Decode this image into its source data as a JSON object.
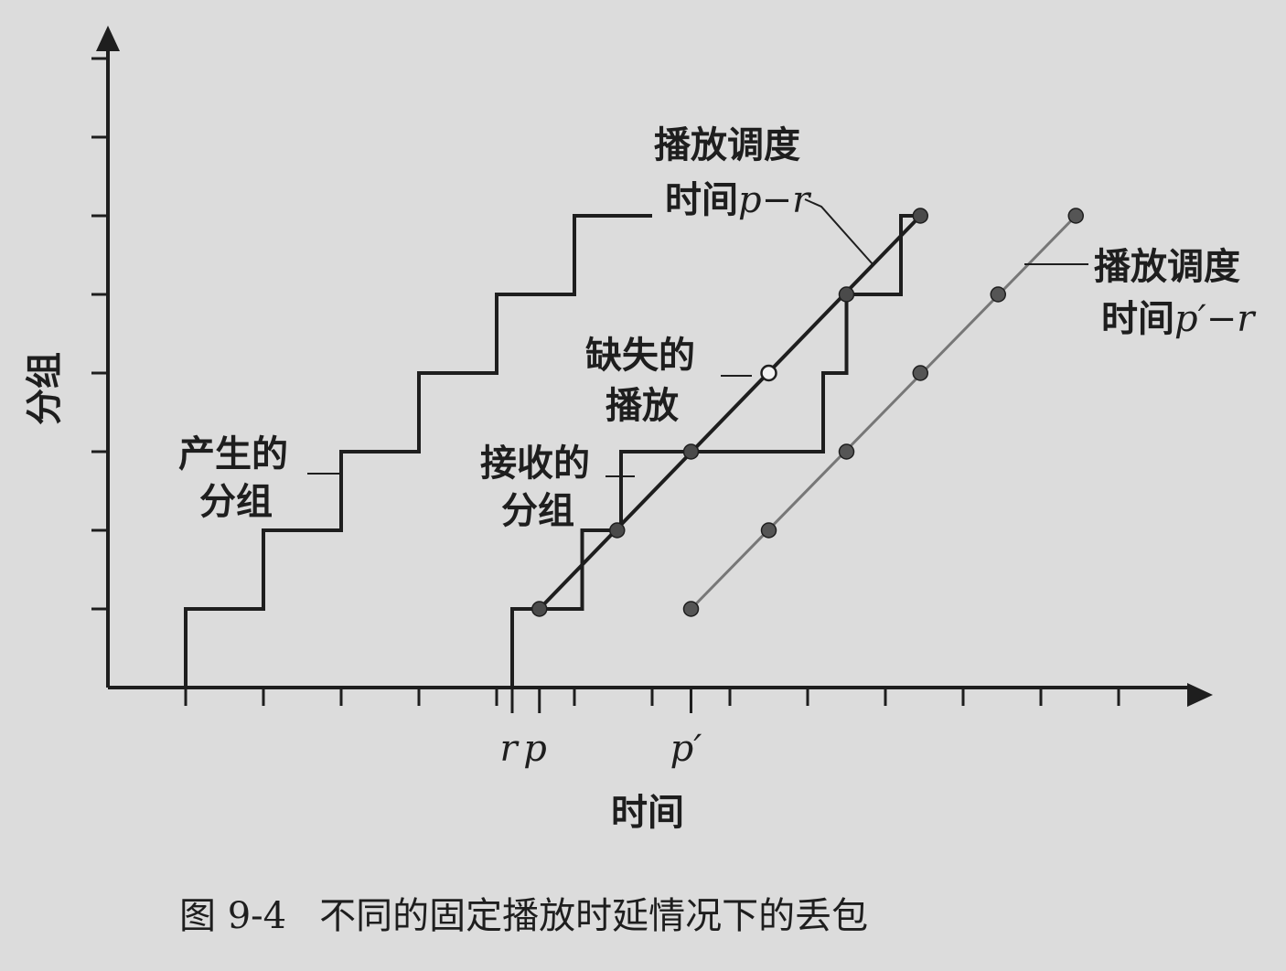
{
  "axes": {
    "y_label": "分组",
    "x_label": "时间",
    "x_tick_labels": {
      "r": "r",
      "p": "p",
      "p_prime": "p′"
    }
  },
  "labels": {
    "schedule1_line1": "播放调度",
    "schedule1_line2_cn": "时间",
    "schedule1_line2_math": "p−r",
    "schedule2_line1": "播放调度",
    "schedule2_line2_cn": "时间",
    "schedule2_line2_math": "p′−r",
    "missing_line1": "缺失的",
    "missing_line2": "播放",
    "generated_line1": "产生的",
    "generated_line2": "分组",
    "received_line1": "接收的",
    "received_line2": "分组"
  },
  "caption": {
    "number": "图 9-4",
    "text": "不同的固定播放时延情况下的丢包"
  },
  "chart_data": {
    "type": "line",
    "x_ticks": 13,
    "y_ticks": 8,
    "series": [
      {
        "name": "产生的分组",
        "style": "step",
        "points": [
          [
            1,
            0
          ],
          [
            1,
            1
          ],
          [
            2,
            1
          ],
          [
            2,
            2
          ],
          [
            3,
            2
          ],
          [
            3,
            3
          ],
          [
            4,
            3
          ],
          [
            4,
            4
          ],
          [
            5,
            4
          ],
          [
            5,
            5
          ],
          [
            6,
            5
          ],
          [
            6,
            6
          ],
          [
            7,
            6
          ]
        ]
      },
      {
        "name": "接收的分组",
        "style": "step",
        "points": [
          [
            5.2,
            0
          ],
          [
            5.2,
            1
          ],
          [
            6.1,
            1
          ],
          [
            6.1,
            2
          ],
          [
            6.6,
            2
          ],
          [
            6.6,
            3
          ],
          [
            9.2,
            3
          ],
          [
            9.2,
            4
          ],
          [
            9.5,
            4
          ],
          [
            9.5,
            5
          ],
          [
            10.2,
            5
          ],
          [
            10.2,
            6
          ],
          [
            10.4,
            6
          ]
        ]
      },
      {
        "name": "播放调度时间p−r",
        "style": "line-markers",
        "color": "#1e1e1e",
        "points": [
          [
            5.55,
            1
          ],
          [
            6.55,
            2
          ],
          [
            7.5,
            3
          ],
          [
            8.5,
            4
          ],
          [
            9.5,
            5
          ],
          [
            10.45,
            6
          ]
        ],
        "missing_index": 3
      },
      {
        "name": "播放调度时间p′−r",
        "style": "line-markers",
        "color": "#777777",
        "points": [
          [
            7.5,
            1
          ],
          [
            8.5,
            2
          ],
          [
            9.5,
            3
          ],
          [
            10.45,
            4
          ],
          [
            11.45,
            5
          ],
          [
            12.45,
            6
          ]
        ]
      }
    ],
    "x_marks": {
      "r": 5.2,
      "p": 5.55,
      "p_prime": 7.5
    }
  }
}
